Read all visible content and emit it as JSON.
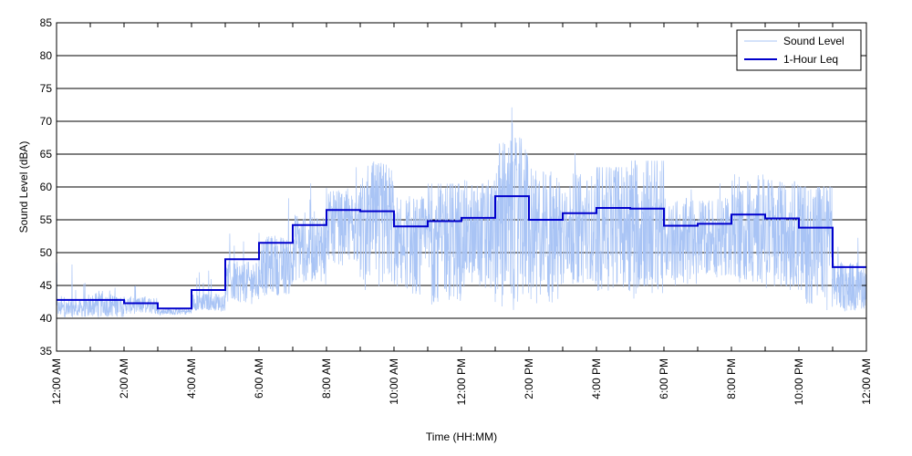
{
  "chart_data": {
    "type": "line",
    "title": "",
    "xlabel": "Time (HH:MM)",
    "ylabel": "Sound Level (dBA)",
    "ylim": [
      35,
      85
    ],
    "y_ticks": [
      35,
      40,
      45,
      50,
      55,
      60,
      65,
      70,
      75,
      80,
      85
    ],
    "xlim_hours": [
      0,
      24
    ],
    "x_tick_hours": [
      0,
      2,
      4,
      6,
      8,
      10,
      12,
      14,
      16,
      18,
      20,
      22,
      24
    ],
    "x_tick_labels": [
      "12:00 AM",
      "2:00 AM",
      "4:00 AM",
      "6:00 AM",
      "8:00 AM",
      "10:00 AM",
      "12:00 PM",
      "2:00 PM",
      "4:00 PM",
      "6:00 PM",
      "8:00 PM",
      "10:00 PM",
      "12:00 AM"
    ],
    "grid": "horizontal",
    "legend_position": "top-right",
    "series": [
      {
        "name": "Sound Level",
        "color": "#a9c4f5",
        "style": "thin-line",
        "hourly_mean": [
          41.5,
          42.0,
          42.0,
          41.0,
          42.5,
          45.5,
          48.0,
          51.0,
          54.0,
          54.5,
          51.5,
          52.5,
          53.0,
          55.0,
          53.0,
          54.0,
          55.0,
          55.0,
          52.0,
          52.5,
          54.0,
          53.0,
          52.0,
          45.0
        ],
        "hourly_peak": [
          49.5,
          47.5,
          45.0,
          42.0,
          52.5,
          53.0,
          59.5,
          61.0,
          68.0,
          65.0,
          59.0,
          60.5,
          64.0,
          73.5,
          65.0,
          65.5,
          63.0,
          64.0,
          60.0,
          62.0,
          62.0,
          66.5,
          60.0,
          54.0
        ],
        "hourly_low": [
          40.0,
          40.0,
          40.5,
          40.5,
          41.0,
          42.0,
          43.0,
          45.0,
          48.0,
          44.0,
          43.5,
          42.0,
          44.0,
          41.0,
          42.0,
          45.0,
          44.0,
          43.0,
          45.0,
          46.0,
          45.0,
          44.0,
          41.0,
          41.0
        ]
      },
      {
        "name": "1-Hour Leq",
        "color": "#0000cc",
        "style": "step",
        "hour_start": [
          0,
          1,
          2,
          3,
          4,
          5,
          6,
          7,
          8,
          9,
          10,
          11,
          12,
          13,
          14,
          15,
          16,
          17,
          18,
          19,
          20,
          21,
          22,
          23
        ],
        "values": [
          42.8,
          42.8,
          42.3,
          41.5,
          44.3,
          49.0,
          51.5,
          54.2,
          56.5,
          56.3,
          54.0,
          54.8,
          55.3,
          58.6,
          55.0,
          56.0,
          56.8,
          56.7,
          54.1,
          54.4,
          55.8,
          55.2,
          53.8,
          47.8
        ]
      }
    ]
  }
}
